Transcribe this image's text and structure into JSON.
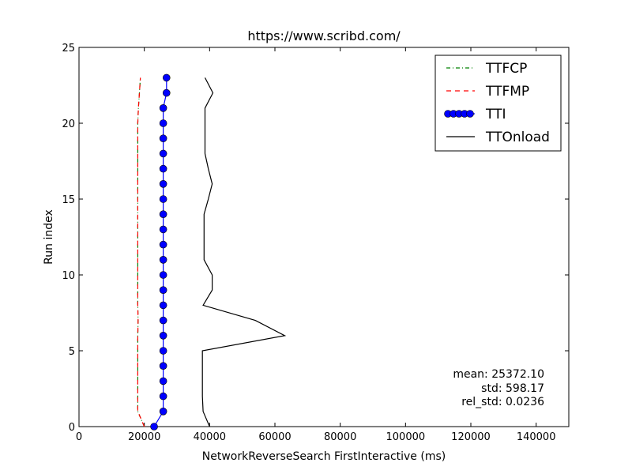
{
  "chart_data": {
    "type": "line",
    "title": "https://www.scribd.com/",
    "xlabel": "NetworkReverseSearch FirstInteractive (ms)",
    "ylabel": "Run index",
    "xlim": [
      0,
      150000
    ],
    "ylim": [
      0,
      25
    ],
    "xticks": [
      0,
      20000,
      40000,
      60000,
      80000,
      100000,
      120000,
      140000
    ],
    "yticks": [
      0,
      5,
      10,
      15,
      20,
      25
    ],
    "grid": false,
    "legend_position": "top-right",
    "series": [
      {
        "name": "TTFCP",
        "style": "dash-dot",
        "color": "#008000",
        "x": [
          20000,
          18000,
          18000,
          18000,
          18000,
          18000,
          18000,
          18100,
          18000,
          18000,
          18000,
          18000,
          18000,
          18000,
          18000,
          18000,
          18000,
          18000,
          18000,
          18000,
          18000,
          18200,
          18500,
          18800
        ],
        "y": [
          0,
          1,
          2,
          3,
          4,
          5,
          6,
          7,
          8,
          9,
          10,
          11,
          12,
          13,
          14,
          15,
          16,
          17,
          18,
          19,
          20,
          21,
          22,
          23
        ]
      },
      {
        "name": "TTFMP",
        "style": "dashed",
        "color": "#ff0000",
        "x": [
          20000,
          18000,
          18000,
          18000,
          18000,
          18000,
          18000,
          18100,
          18000,
          18000,
          18000,
          18000,
          18000,
          18000,
          18000,
          18000,
          18000,
          18000,
          18000,
          18000,
          18000,
          18200,
          18500,
          18800
        ],
        "y": [
          0,
          1,
          2,
          3,
          4,
          5,
          6,
          7,
          8,
          9,
          10,
          11,
          12,
          13,
          14,
          15,
          16,
          17,
          18,
          19,
          20,
          21,
          22,
          23
        ]
      },
      {
        "name": "TTI",
        "style": "solid-markers",
        "color": "#0000ff",
        "x": [
          23000,
          25800,
          25800,
          25800,
          25800,
          25800,
          25800,
          25800,
          25800,
          25800,
          25800,
          25800,
          25800,
          25800,
          25800,
          25800,
          25800,
          25800,
          25800,
          25800,
          25800,
          25800,
          26800,
          26800
        ],
        "y": [
          0,
          1,
          2,
          3,
          4,
          5,
          6,
          7,
          8,
          9,
          10,
          11,
          12,
          13,
          14,
          15,
          16,
          17,
          18,
          19,
          20,
          21,
          22,
          23
        ]
      },
      {
        "name": "TTOnload",
        "style": "solid",
        "color": "#000000",
        "x": [
          40000,
          38000,
          37800,
          37800,
          37800,
          37800,
          63000,
          54000,
          38000,
          40800,
          40800,
          38300,
          38300,
          38300,
          38300,
          39600,
          40800,
          39600,
          38600,
          38600,
          38600,
          38600,
          41000,
          38600
        ],
        "y": [
          0,
          1,
          2,
          3,
          4,
          5,
          6,
          7,
          8,
          9,
          10,
          11,
          12,
          13,
          14,
          15,
          16,
          17,
          18,
          19,
          20,
          21,
          22,
          23
        ]
      }
    ],
    "annotations": [
      "mean: 25372.10",
      "std: 598.17",
      "rel_std: 0.0236"
    ]
  }
}
